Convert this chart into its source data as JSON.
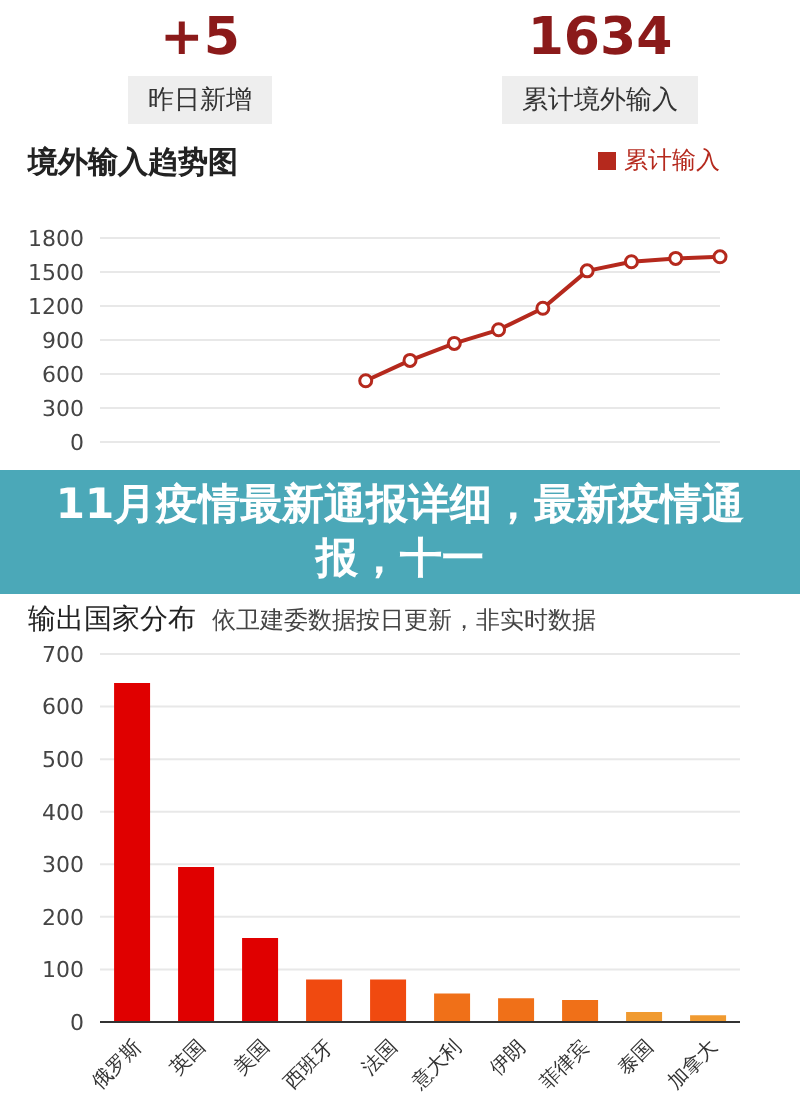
{
  "chart_data": [
    {
      "type": "other",
      "categories": [
        "昨日新增",
        "累计境外输入"
      ],
      "value_labels": [
        "+5",
        "1634"
      ],
      "color": "#8b1a1a"
    },
    {
      "type": "line",
      "title": "境外输入趋势图",
      "categories": [
        null,
        null,
        null,
        null,
        null,
        null,
        null,
        null,
        null,
        null,
        null,
        null,
        null,
        null,
        null
      ],
      "series": [
        {
          "name": "累计输入",
          "color": "#b5291d",
          "values": [
            null,
            null,
            null,
            null,
            null,
            null,
            540,
            720,
            870,
            990,
            1180,
            1510,
            1590,
            1620,
            1634
          ]
        }
      ],
      "ylim": [
        0,
        1800
      ],
      "yticks": [
        0,
        300,
        600,
        900,
        1200,
        1500,
        1800
      ],
      "grid": "y",
      "legend": "top right",
      "marker": "circle",
      "line_style": "solid"
    },
    {
      "type": "other",
      "annotations": [
        "11月疫情最新通报详细，最新疫情通报，十一"
      ],
      "color": "#4ba8b8"
    },
    {
      "type": "bar",
      "title": "输出国家分布",
      "subtitle": "依卫建委数据按日更新，非实时数据",
      "categories": [
        "俄罗斯",
        "英国",
        "美国",
        "西班牙",
        "法国",
        "意大利",
        "伊朗",
        "菲律宾",
        "泰国",
        "加拿大"
      ],
      "values": [
        645,
        295,
        160,
        81,
        81,
        54,
        45,
        42,
        19,
        13
      ],
      "colors": [
        "#e00000",
        "#e00000",
        "#e00000",
        "#f04a10",
        "#f04a10",
        "#f07018",
        "#f07018",
        "#f07018",
        "#f09a30",
        "#f09a30"
      ],
      "ylim": [
        0,
        700
      ],
      "yticks": [
        0,
        100,
        200,
        300,
        400,
        500,
        600,
        700
      ],
      "grid": "y"
    }
  ]
}
